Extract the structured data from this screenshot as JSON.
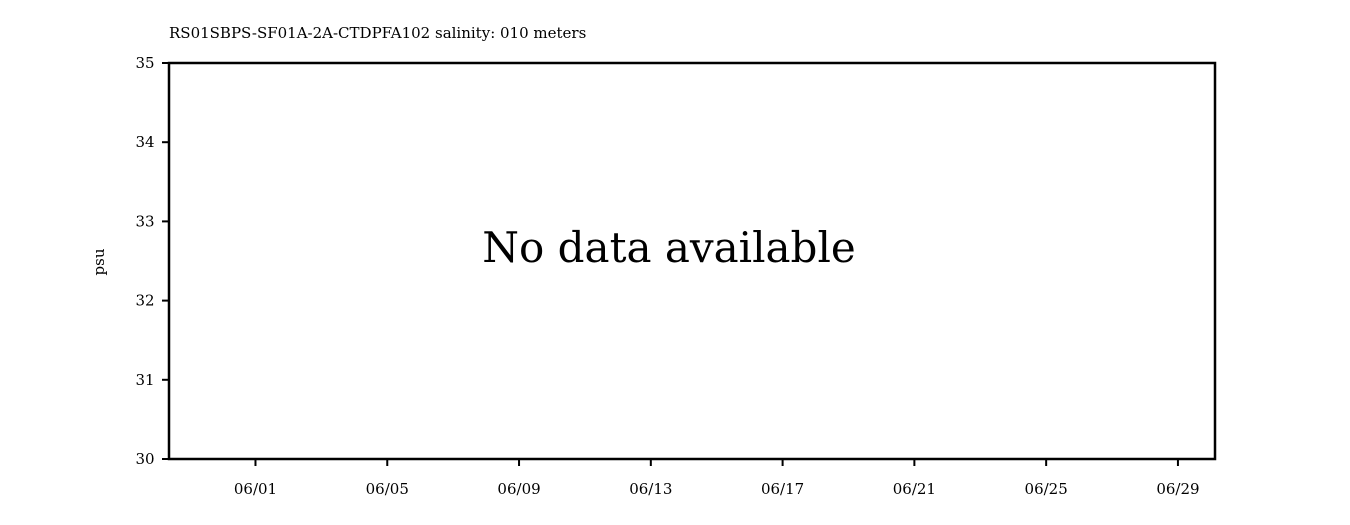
{
  "chart_data": {
    "type": "line",
    "title": "RS01SBPS-SF01A-2A-CTDPFA102 salinity: 010 meters",
    "xlabel": "",
    "ylabel": "psu",
    "ylim": [
      30,
      35
    ],
    "yticks": [
      30,
      31,
      32,
      33,
      34,
      35
    ],
    "xlim": [
      "2023-05-29 09:00",
      "2023-06-30 03:00"
    ],
    "xticks": [
      {
        "date": "2023-06-01",
        "label": "06/01"
      },
      {
        "date": "2023-06-05",
        "label": "06/05"
      },
      {
        "date": "2023-06-09",
        "label": "06/09"
      },
      {
        "date": "2023-06-13",
        "label": "06/13"
      },
      {
        "date": "2023-06-17",
        "label": "06/17"
      },
      {
        "date": "2023-06-21",
        "label": "06/21"
      },
      {
        "date": "2023-06-25",
        "label": "06/25"
      },
      {
        "date": "2023-06-29",
        "label": "06/29"
      }
    ],
    "grid": false,
    "series": [],
    "annotation": "No data available"
  }
}
